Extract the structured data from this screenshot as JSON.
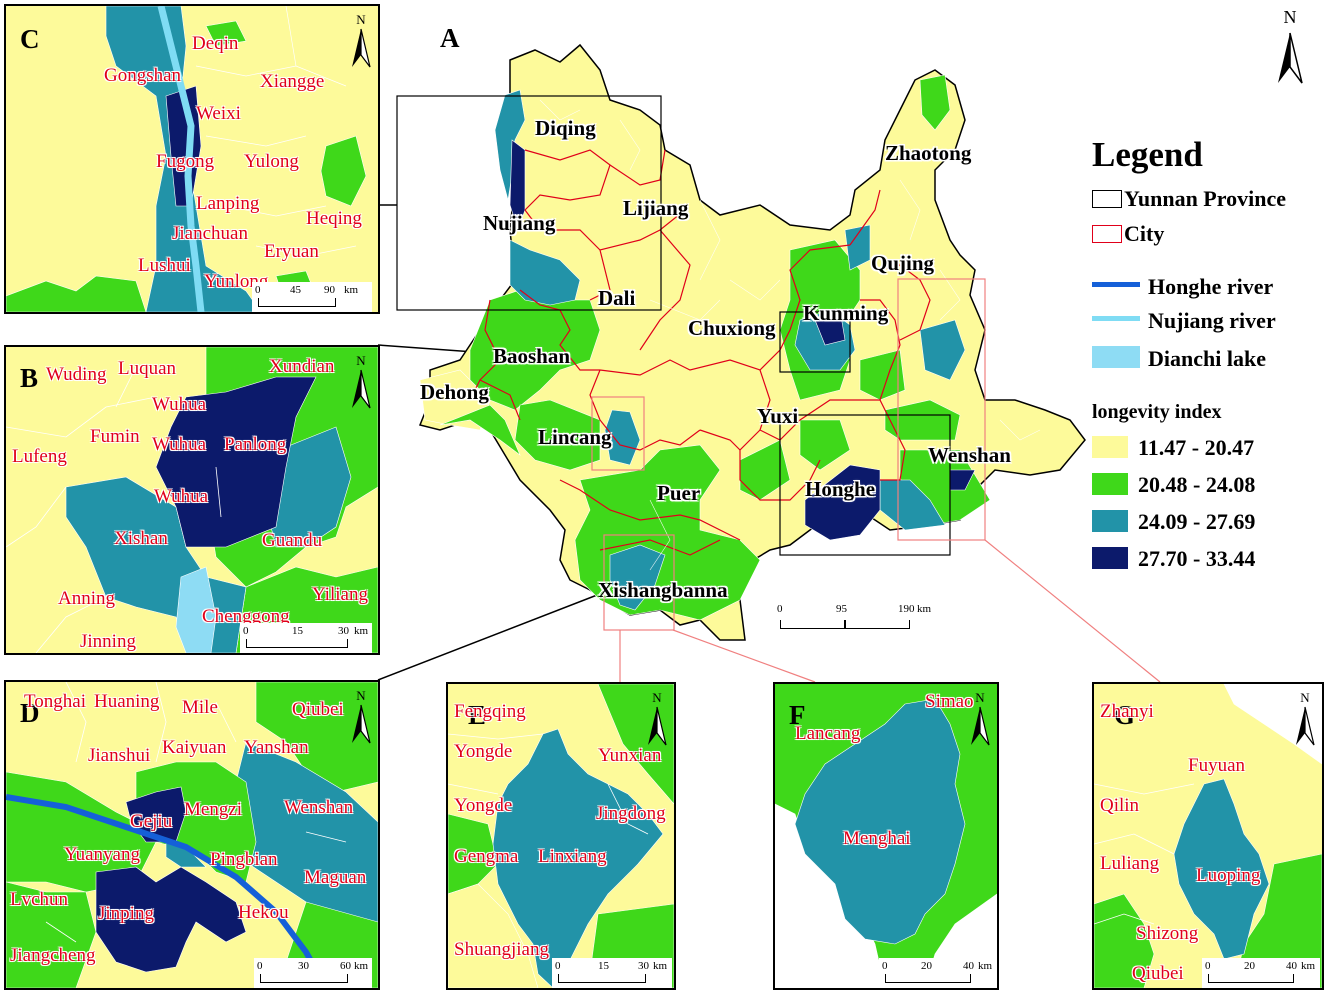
{
  "main": {
    "label": "A",
    "cities": [
      "Diqing",
      "Lijiang",
      "Nujiang",
      "Dali",
      "Zhaotong",
      "Qujing",
      "Kunming",
      "Chuxiong",
      "Baoshan",
      "Dehong",
      "Lincang",
      "Yuxi",
      "Wenshan",
      "Honghe",
      "Puer",
      "Xishangbanna"
    ],
    "scale": {
      "ticks": [
        "0",
        "95",
        "190"
      ],
      "unit": "km"
    }
  },
  "legend": {
    "title": "Legend",
    "province": "Yunnan Province",
    "city": "City",
    "honghe_river": "Honghe river",
    "nujiang_river": "Nujiang river",
    "dianchi_lake": "Dianchi lake",
    "index_title": "longevity index",
    "classes": [
      {
        "range": "11.47 - 20.47",
        "color": "#fdfa9a"
      },
      {
        "range": "20.48 - 24.08",
        "color": "#3fd81a"
      },
      {
        "range": "24.09 - 27.69",
        "color": "#2293a8"
      },
      {
        "range": "27.70 - 33.44",
        "color": "#0c1a6b"
      }
    ],
    "line_colors": {
      "province": "#000000",
      "city": "#e0001a",
      "honghe": "#1560d8",
      "nujiang": "#7fdcf4",
      "dianchi": "#8edcf4"
    }
  },
  "panel_c": {
    "label": "C",
    "places": [
      "Deqin",
      "Gongshan",
      "Xiangge",
      "Weixi",
      "Fugong",
      "Yulong",
      "Lanping",
      "Heqing",
      "Jianchuan",
      "Eryuan",
      "Lushui",
      "Yunlong"
    ],
    "scale": {
      "ticks": [
        "0",
        "45",
        "90"
      ],
      "unit": "km"
    }
  },
  "panel_b": {
    "label": "B",
    "places": [
      "Wuding",
      "Luquan",
      "Xundian",
      "Wuhua",
      "Fumin",
      "Wuhua",
      "Panlong",
      "Lufeng",
      "Wuhua",
      "Xishan",
      "Guandu",
      "Anning",
      "Yiliang",
      "Chenggong",
      "Jinning"
    ],
    "scale": {
      "ticks": [
        "0",
        "15",
        "30"
      ],
      "unit": "km"
    }
  },
  "panel_d": {
    "label": "D",
    "places": [
      "Tonghai",
      "Huaning",
      "Mile",
      "Qiubei",
      "Jianshui",
      "Kaiyuan",
      "Yanshan",
      "Gejiu",
      "Mengzi",
      "Wenshan",
      "Yuanyang",
      "Pingbian",
      "Maguan",
      "Lvchun",
      "Jinping",
      "Hekou",
      "Jiangcheng"
    ],
    "scale": {
      "ticks": [
        "0",
        "30",
        "60"
      ],
      "unit": "km"
    }
  },
  "panel_e": {
    "label": "E",
    "places": [
      "Fengqing",
      "Yongde",
      "Yunxian",
      "Yongde",
      "Jingdong",
      "Gengma",
      "Linxiang",
      "Shuangjiang"
    ],
    "scale": {
      "ticks": [
        "0",
        "15",
        "30"
      ],
      "unit": "km"
    }
  },
  "panel_f": {
    "label": "F",
    "places": [
      "Simao",
      "Lancang",
      "Menghai"
    ],
    "scale": {
      "ticks": [
        "0",
        "20",
        "40"
      ],
      "unit": "km"
    }
  },
  "panel_g": {
    "label": "G",
    "places": [
      "Zhanyi",
      "Fuyuan",
      "Qilin",
      "Luliang",
      "Luoping",
      "Shizong",
      "Qiubei"
    ],
    "scale": {
      "ticks": [
        "0",
        "20",
        "40"
      ],
      "unit": "km"
    }
  },
  "north": "N"
}
